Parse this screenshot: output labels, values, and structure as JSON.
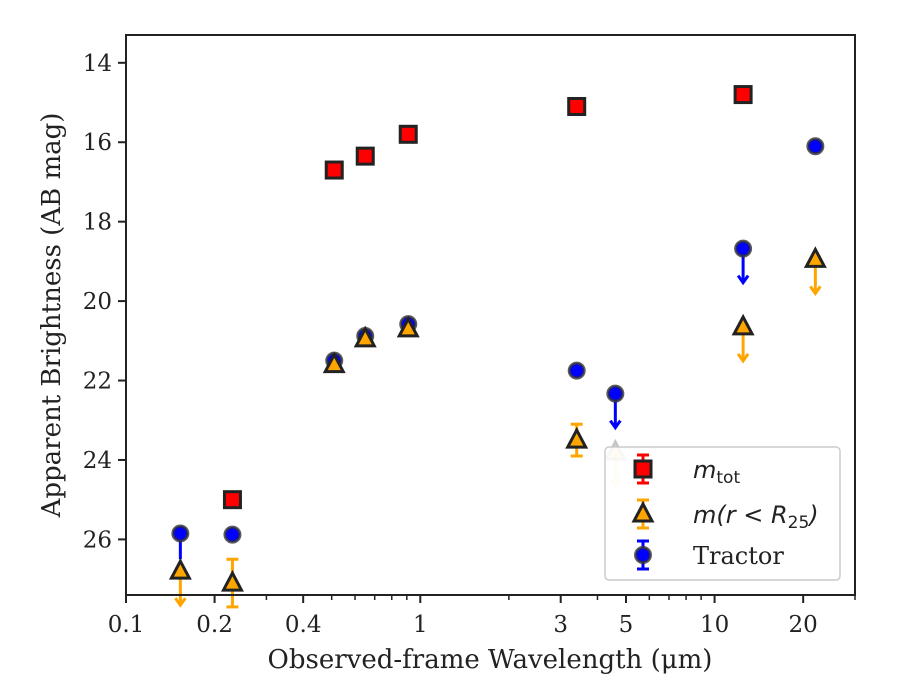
{
  "chart_data": {
    "type": "scatter",
    "xlabel": "Observed-frame Wavelength (μm)",
    "ylabel": "Apparent Brightness (AB mag)",
    "xscale": "log",
    "xlim": [
      0.1,
      30
    ],
    "ylim": [
      27.4,
      13.3
    ],
    "y_inverted": true,
    "grid": false,
    "legend_position": "lower-right",
    "x_ticks": [
      {
        "value": 0.1,
        "label": "0.1"
      },
      {
        "value": 0.2,
        "label": "0.2"
      },
      {
        "value": 0.4,
        "label": "0.4"
      },
      {
        "value": 1,
        "label": "1"
      },
      {
        "value": 3,
        "label": "3"
      },
      {
        "value": 5,
        "label": "5"
      },
      {
        "value": 10,
        "label": "10"
      },
      {
        "value": 20,
        "label": "20"
      }
    ],
    "x_minor_ticks": [
      0.3,
      0.5,
      0.6,
      0.7,
      0.8,
      0.9,
      2,
      4,
      6,
      7,
      8,
      9,
      30
    ],
    "y_ticks": [
      14,
      16,
      18,
      20,
      22,
      24,
      26
    ],
    "series": [
      {
        "name": "m_tot",
        "legend_main": "m",
        "legend_sub": "tot",
        "legend_rest": "",
        "marker": "square",
        "color": "#ff0000",
        "edge_color": "#222222",
        "points": [
          {
            "x": 0.23,
            "y": 25.0,
            "upper_limit": false
          },
          {
            "x": 0.51,
            "y": 16.7,
            "upper_limit": false
          },
          {
            "x": 0.65,
            "y": 16.35,
            "upper_limit": false
          },
          {
            "x": 0.91,
            "y": 15.8,
            "upper_limit": false
          },
          {
            "x": 3.4,
            "y": 15.1,
            "upper_limit": false
          },
          {
            "x": 12.5,
            "y": 14.8,
            "upper_limit": false
          }
        ]
      },
      {
        "name": "m(r < R25)",
        "legend_main": "m(r < R",
        "legend_sub": "25",
        "legend_rest": ")",
        "marker": "triangle",
        "color": "#ffa500",
        "edge_color": "#222222",
        "points": [
          {
            "x": 0.153,
            "y": 26.8,
            "upper_limit": true
          },
          {
            "x": 0.23,
            "y": 27.1,
            "upper_limit": false,
            "yerr": 0.6
          },
          {
            "x": 0.51,
            "y": 21.6,
            "upper_limit": false
          },
          {
            "x": 0.65,
            "y": 20.95,
            "upper_limit": false
          },
          {
            "x": 0.91,
            "y": 20.7,
            "upper_limit": false
          },
          {
            "x": 3.4,
            "y": 23.5,
            "upper_limit": false,
            "yerr": 0.4
          },
          {
            "x": 4.6,
            "y": 23.8,
            "upper_limit": true,
            "faded": true
          },
          {
            "x": 12.5,
            "y": 20.65,
            "upper_limit": true
          },
          {
            "x": 22,
            "y": 18.95,
            "upper_limit": true
          }
        ]
      },
      {
        "name": "Tractor",
        "legend_main": "Tractor",
        "legend_sub": "",
        "legend_rest": "",
        "marker": "circle",
        "color": "#0000ff",
        "edge_color": "#333333",
        "points": [
          {
            "x": 0.153,
            "y": 25.85,
            "upper_limit": false,
            "err_down_to": 26.5
          },
          {
            "x": 0.23,
            "y": 25.88,
            "upper_limit": false
          },
          {
            "x": 0.51,
            "y": 21.5,
            "upper_limit": false
          },
          {
            "x": 0.65,
            "y": 20.88,
            "upper_limit": false
          },
          {
            "x": 0.91,
            "y": 20.58,
            "upper_limit": false
          },
          {
            "x": 3.4,
            "y": 21.75,
            "upper_limit": false
          },
          {
            "x": 4.6,
            "y": 22.33,
            "upper_limit": true
          },
          {
            "x": 12.5,
            "y": 18.68,
            "upper_limit": true
          },
          {
            "x": 22,
            "y": 16.1,
            "upper_limit": false
          }
        ]
      }
    ]
  }
}
